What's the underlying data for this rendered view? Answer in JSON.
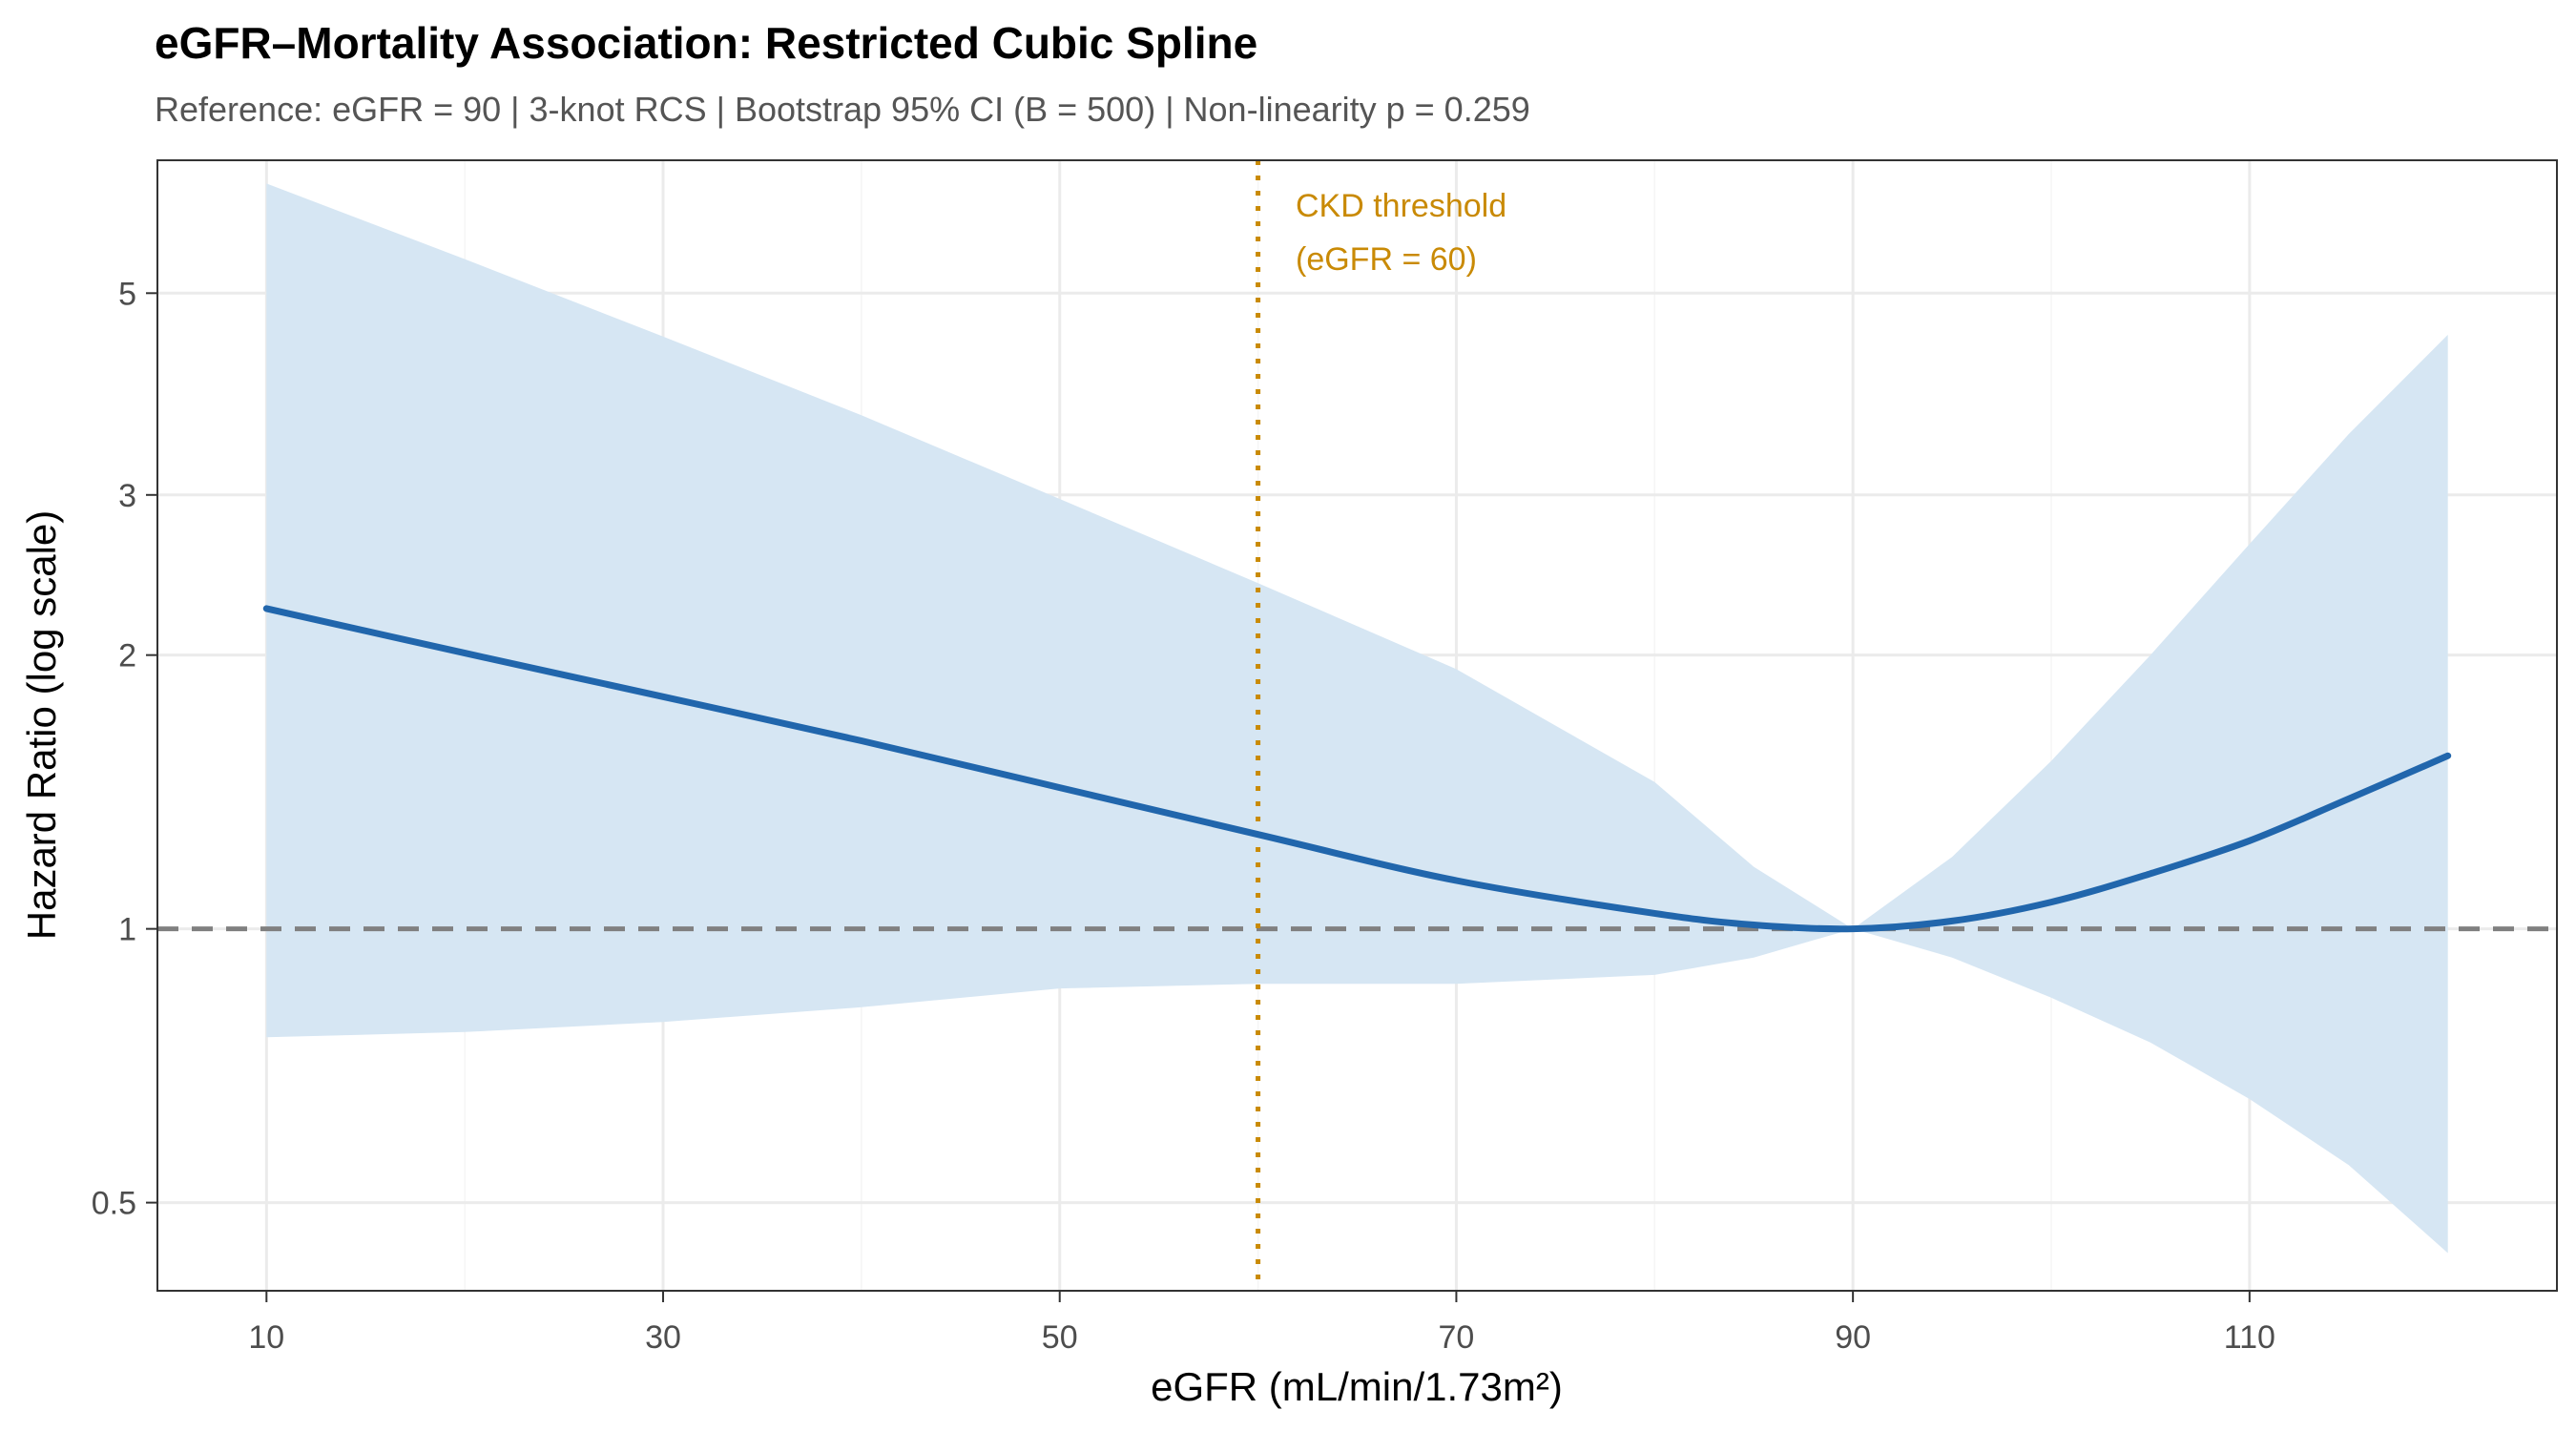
{
  "chart_data": {
    "type": "line",
    "title": "eGFR–Mortality Association: Restricted Cubic Spline",
    "subtitle": "Reference: eGFR = 90 | 3-knot RCS | Bootstrap 95% CI (B = 500) | Non-linearity p = 0.259",
    "xlabel": "eGFR (mL/min/1.73m²)",
    "ylabel": "Hazard Ratio (log scale)",
    "xlim": [
      4.5,
      125.5
    ],
    "ylim": [
      0.4,
      7.0
    ],
    "y_scale": "log",
    "x_ticks": [
      10,
      30,
      50,
      70,
      90,
      110
    ],
    "y_ticks": [
      0.5,
      1,
      2,
      3,
      5
    ],
    "y_tick_labels": [
      "0.5",
      "1",
      "2",
      "3",
      "5"
    ],
    "grid": true,
    "reference_line": {
      "y": 1,
      "style": "dashed",
      "color": "#808080"
    },
    "threshold_line": {
      "x": 60,
      "style": "dotted",
      "color": "#c98a05",
      "label_lines": [
        "CKD threshold",
        "(eGFR = 60)"
      ]
    },
    "colors": {
      "line": "#2166ac",
      "ribbon": "#d6e6f3",
      "annotation": "#c98a05"
    },
    "series": [
      {
        "x": [
          10,
          20,
          30,
          40,
          50,
          60,
          70,
          80,
          85,
          90,
          95,
          100,
          105,
          110,
          115,
          120
        ],
        "y": [
          2.25,
          2.01,
          1.8,
          1.61,
          1.43,
          1.27,
          1.13,
          1.04,
          1.01,
          1.0,
          1.02,
          1.07,
          1.15,
          1.25,
          1.39,
          1.55
        ],
        "lower": [
          0.76,
          0.77,
          0.79,
          0.82,
          0.86,
          0.87,
          0.87,
          0.89,
          0.93,
          1.0,
          0.93,
          0.84,
          0.75,
          0.65,
          0.55,
          0.44
        ],
        "upper": [
          6.6,
          5.45,
          4.48,
          3.67,
          2.97,
          2.4,
          1.93,
          1.45,
          1.17,
          1.0,
          1.2,
          1.53,
          2.0,
          2.65,
          3.5,
          4.5
        ]
      }
    ]
  }
}
